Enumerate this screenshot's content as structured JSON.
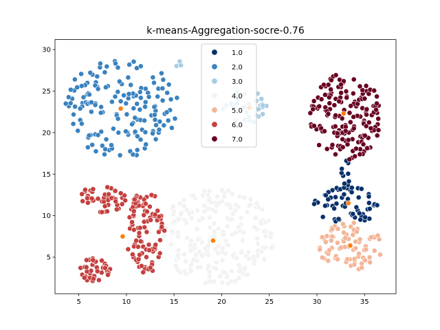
{
  "chart_data": {
    "type": "scatter",
    "title": "k-means-Aggregation-socre-0.76",
    "xlabel": "",
    "ylabel": "",
    "xlim": [
      2.5,
      38.3
    ],
    "ylim": [
      0.6,
      31.2
    ],
    "xticks": [
      5,
      10,
      15,
      20,
      25,
      30,
      35
    ],
    "yticks": [
      5,
      10,
      15,
      20,
      25,
      30
    ],
    "grid": false,
    "legend_position": "top-center",
    "series": [
      {
        "name": "1.0",
        "color": "#08306b",
        "clusters": [
          {
            "cx": 33.2,
            "cy": 11.3,
            "rx": 3.5,
            "ry": 2.4,
            "n": 60
          },
          {
            "cx": 33.0,
            "cy": 15.0,
            "rx": 0.5,
            "ry": 2.2,
            "n": 10
          }
        ]
      },
      {
        "name": "2.0",
        "color": "#3a82bf",
        "clusters": [
          {
            "cx": 9.5,
            "cy": 23.0,
            "rx": 6.0,
            "ry": 6.0,
            "n": 160
          }
        ]
      },
      {
        "name": "3.0",
        "color": "#a6cde4",
        "clusters": [
          {
            "cx": 22.5,
            "cy": 23.0,
            "rx": 2.4,
            "ry": 2.1,
            "n": 30
          },
          {
            "cx": 15.5,
            "cy": 28.0,
            "rx": 0.3,
            "ry": 0.8,
            "n": 3
          }
        ]
      },
      {
        "name": "4.0",
        "color": "#f2f2f2",
        "clusters": [
          {
            "cx": 19.5,
            "cy": 7.5,
            "rx": 6.0,
            "ry": 5.8,
            "n": 230
          }
        ]
      },
      {
        "name": "5.0",
        "color": "#f4b596",
        "clusters": [
          {
            "cx": 33.5,
            "cy": 6.3,
            "rx": 3.4,
            "ry": 2.9,
            "n": 80
          }
        ]
      },
      {
        "name": "6.0",
        "color": "#c4403f",
        "clusters": [
          {
            "cx": 6.5,
            "cy": 3.5,
            "rx": 1.9,
            "ry": 1.4,
            "n": 40
          },
          {
            "cx": 7.5,
            "cy": 12.0,
            "rx": 2.6,
            "ry": 1.6,
            "n": 45
          },
          {
            "cx": 12.0,
            "cy": 8.0,
            "rx": 2.0,
            "ry": 5.0,
            "n": 100
          }
        ]
      },
      {
        "name": "7.0",
        "color": "#67001f",
        "clusters": [
          {
            "cx": 33.0,
            "cy": 22.0,
            "rx": 3.8,
            "ry": 5.3,
            "n": 170
          }
        ]
      }
    ],
    "centroids": {
      "color": "#ff7f0e",
      "points": [
        [
          33.3,
          11.5
        ],
        [
          9.4,
          22.9
        ],
        [
          22.9,
          23.0
        ],
        [
          19.1,
          7.0
        ],
        [
          33.5,
          6.4
        ],
        [
          9.6,
          7.5
        ],
        [
          32.8,
          22.3
        ]
      ]
    }
  }
}
